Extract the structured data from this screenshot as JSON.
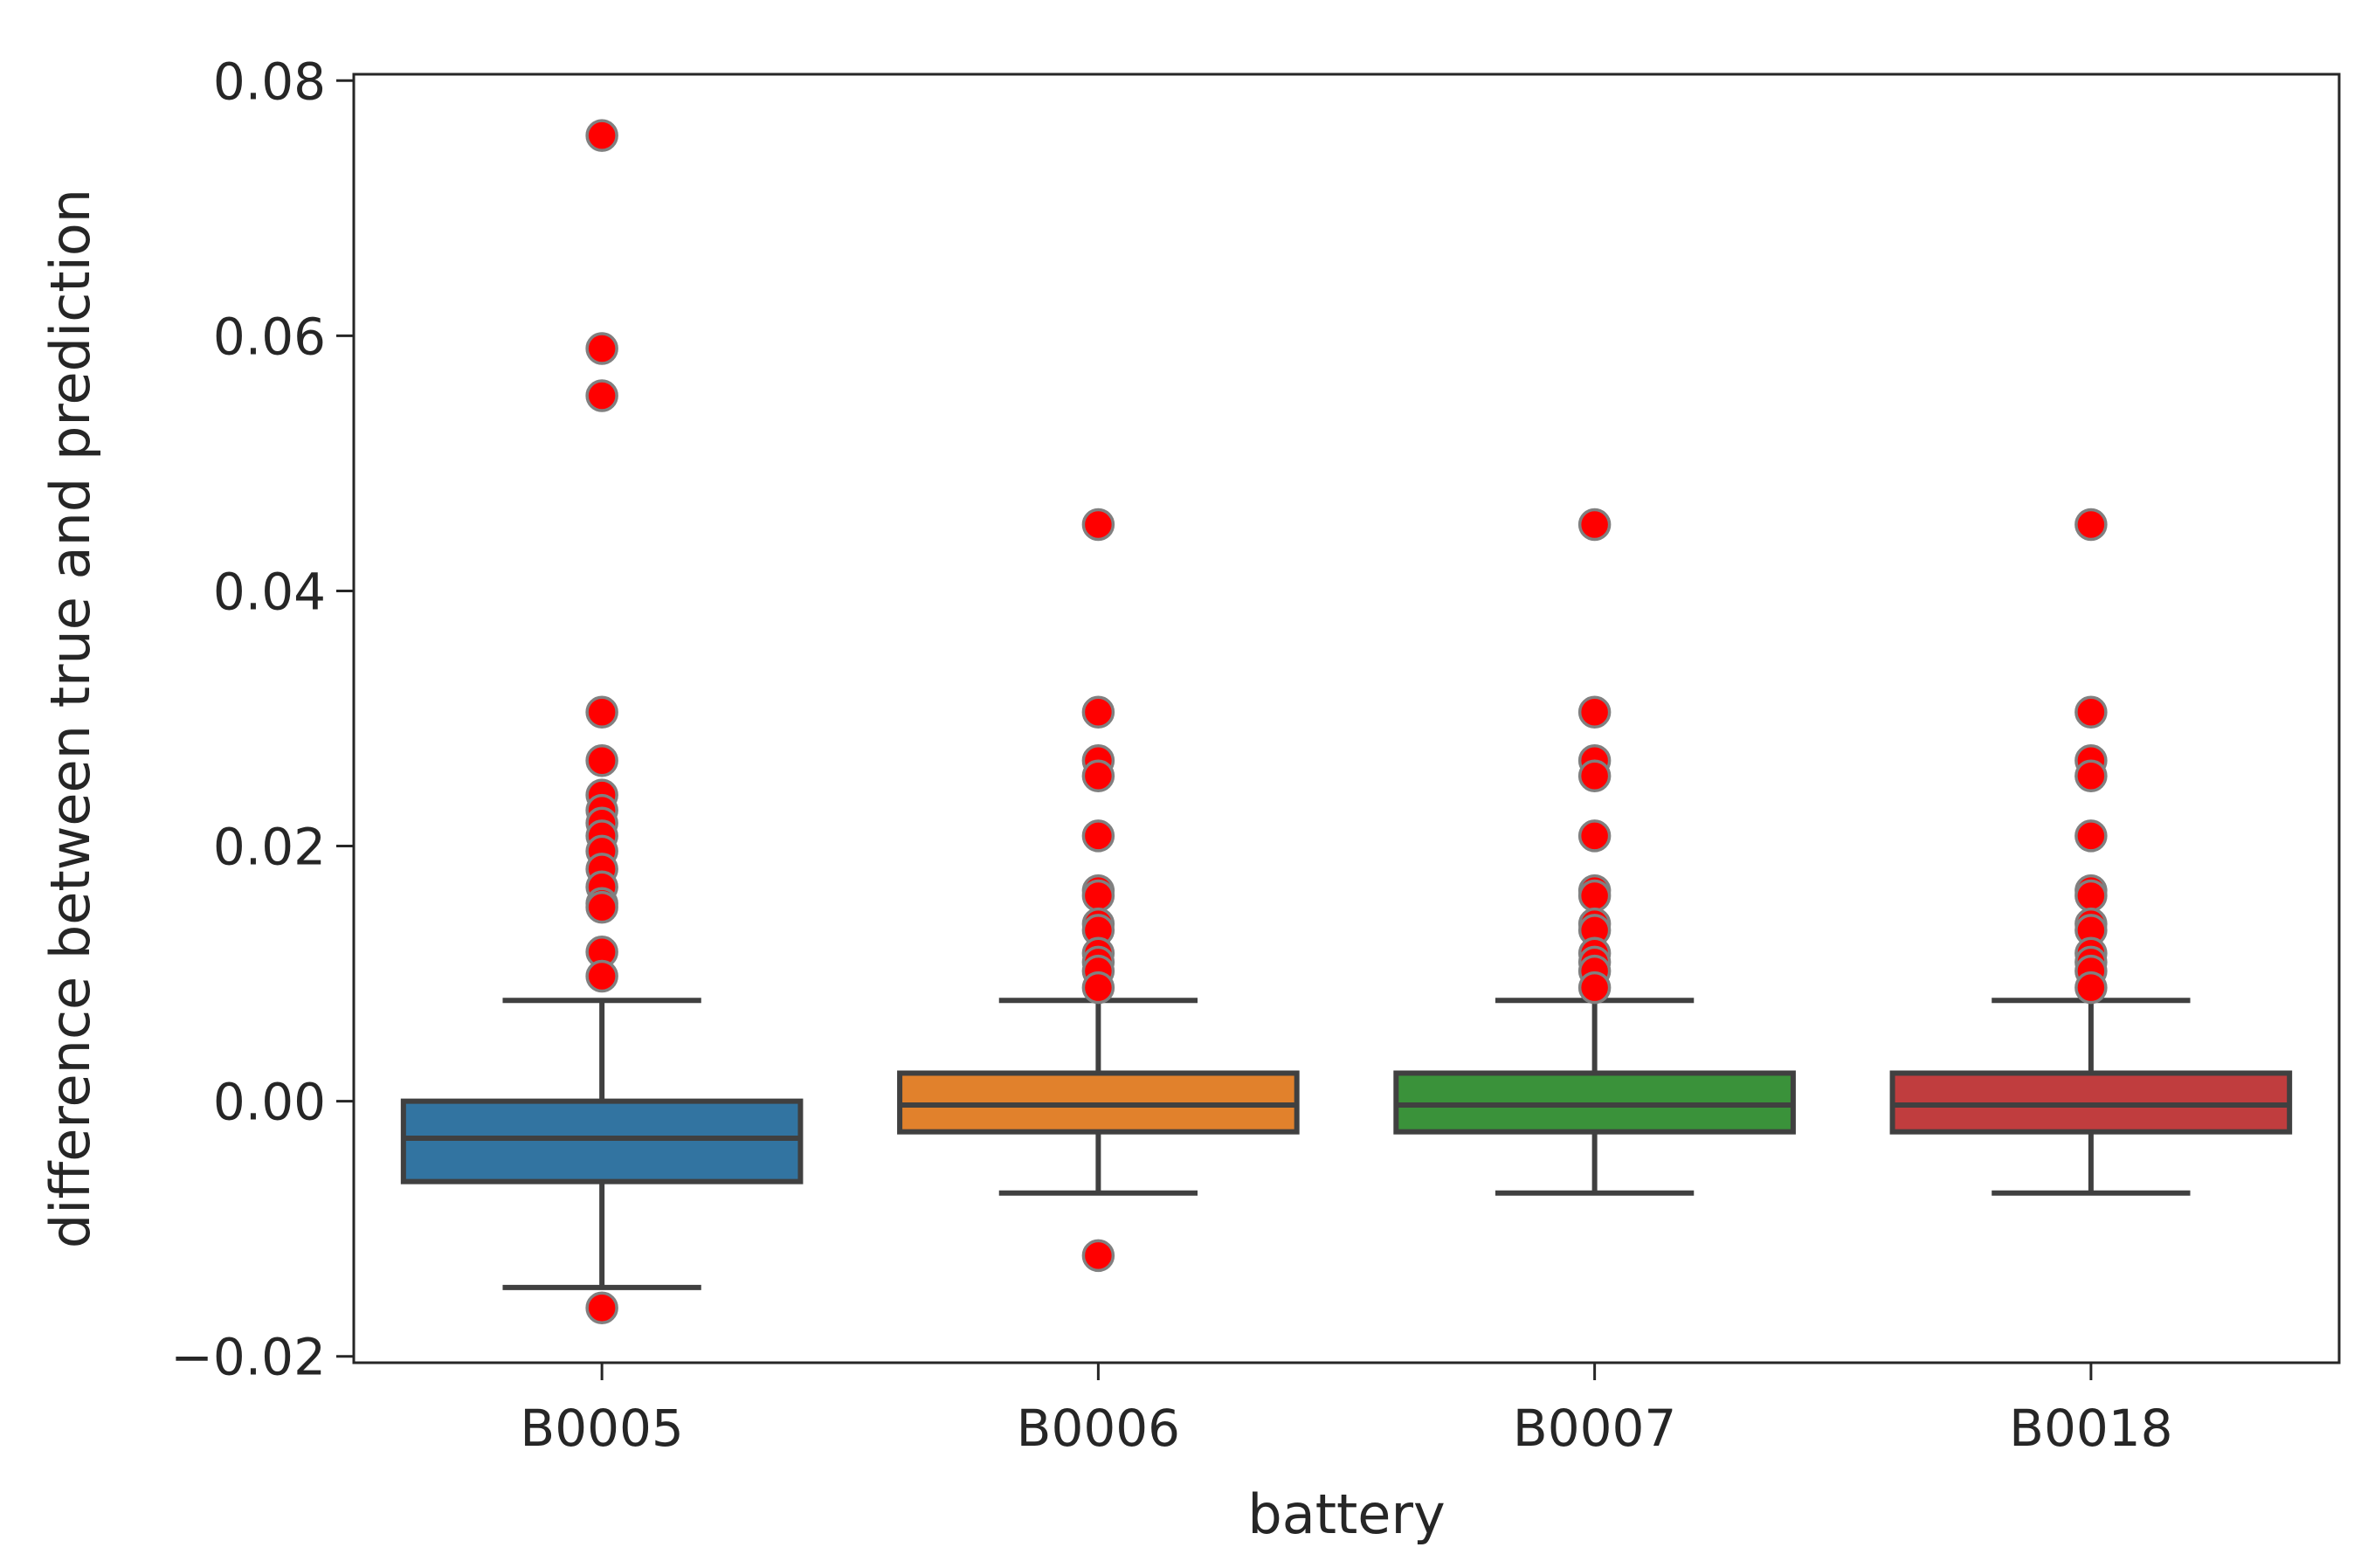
{
  "chart_data": {
    "type": "box",
    "title": "",
    "xlabel": "battery",
    "ylabel": "difference between true and prediction",
    "ylim": [
      -0.0205,
      0.0805
    ],
    "yticks": [
      -0.02,
      0.0,
      0.02,
      0.04,
      0.06,
      0.08
    ],
    "ytick_labels": [
      "−0.02",
      "0.00",
      "0.02",
      "0.04",
      "0.06",
      "0.08"
    ],
    "grid": false,
    "categories": [
      "B0005",
      "B0006",
      "B0007",
      "B0018"
    ],
    "series": [
      {
        "name": "B0005",
        "color": "#3274a1",
        "whisker_low": -0.0146,
        "q1": -0.0063,
        "median": -0.0029,
        "q3": 0.0,
        "whisker_high": 0.0079,
        "outliers": [
          0.0757,
          0.059,
          0.0553,
          0.0305,
          0.0267,
          0.024,
          0.0228,
          0.0218,
          0.0208,
          0.0196,
          0.0182,
          0.0168,
          0.0155,
          0.0152,
          0.0117,
          0.0098,
          -0.0162
        ]
      },
      {
        "name": "B0006",
        "color": "#e1812c",
        "whisker_low": -0.0072,
        "q1": -0.0024,
        "median": -0.0003,
        "q3": 0.0022,
        "whisker_high": 0.0079,
        "outliers": [
          0.0452,
          0.0305,
          0.0267,
          0.0255,
          0.0208,
          0.0165,
          0.0161,
          0.0139,
          0.0134,
          0.0116,
          0.0109,
          0.0102,
          0.0089,
          -0.0121
        ]
      },
      {
        "name": "B0007",
        "color": "#3a923a",
        "whisker_low": -0.0072,
        "q1": -0.0024,
        "median": -0.0003,
        "q3": 0.0022,
        "whisker_high": 0.0079,
        "outliers": [
          0.0452,
          0.0305,
          0.0267,
          0.0255,
          0.0208,
          0.0165,
          0.0161,
          0.0139,
          0.0134,
          0.0116,
          0.0109,
          0.0102,
          0.0089
        ]
      },
      {
        "name": "B0018",
        "color": "#c03d3e",
        "whisker_low": -0.0072,
        "q1": -0.0024,
        "median": -0.0003,
        "q3": 0.0022,
        "whisker_high": 0.0079,
        "outliers": [
          0.0452,
          0.0305,
          0.0267,
          0.0255,
          0.0208,
          0.0165,
          0.0161,
          0.0139,
          0.0134,
          0.0116,
          0.0109,
          0.0102,
          0.0089
        ]
      }
    ],
    "outlier_color": "#ff0000"
  }
}
